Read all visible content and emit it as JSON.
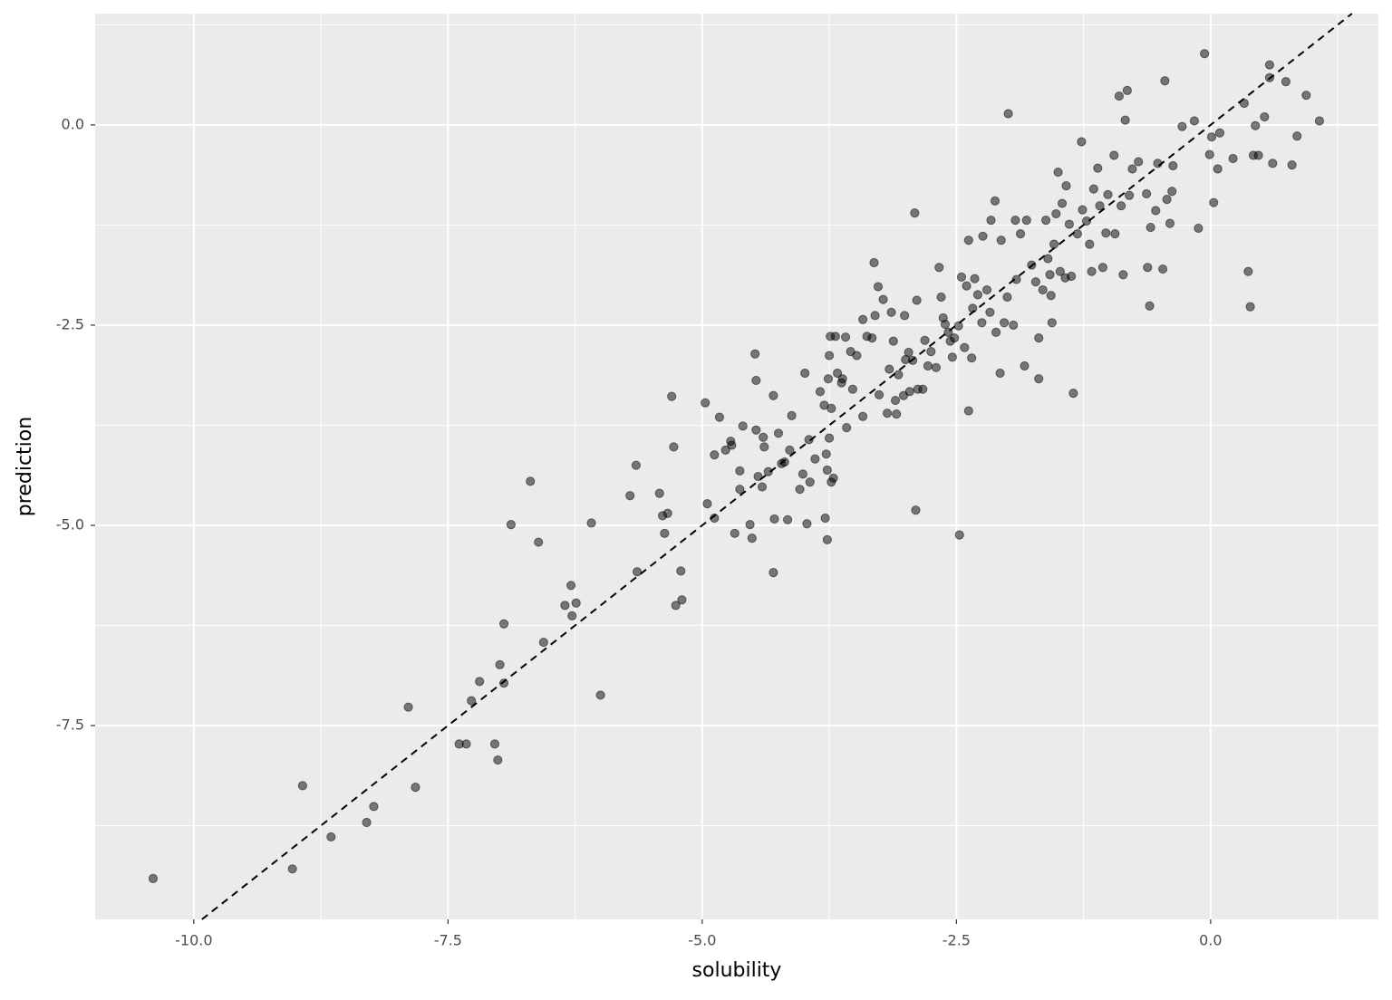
{
  "chart_data": {
    "type": "scatter",
    "x_label": "solubility",
    "y_label": "prediction",
    "color": "#000000",
    "opacity": 0.5,
    "grid": true,
    "reference_line": {
      "slope": 1,
      "intercept": 0
    },
    "xlim": [
      -10.97,
      1.65
    ],
    "ylim": [
      -9.92,
      1.39
    ],
    "xticks": [
      {
        "value": -10,
        "label": "-10.0"
      },
      -7.5,
      {
        "value": -5,
        "label": "-5.0"
      },
      -2.5,
      {
        "value": 0,
        "label": "0.0"
      }
    ],
    "yticks": [
      {
        "value": 0,
        "label": "0.0"
      },
      -2.5,
      {
        "value": -5,
        "label": "-5.0"
      },
      -7.5
    ],
    "x": [
      -10.4,
      -9.03,
      -8.93,
      -8.65,
      -8.3,
      -8.23,
      -7.89,
      -7.82,
      -7.39,
      -7.32,
      -7.27,
      -7.19,
      -7.04,
      -7.01,
      -6.99,
      -6.95,
      -6.95,
      -6.88,
      -6.69,
      -6.61,
      -6.56,
      -6.35,
      -6.29,
      -6.28,
      -6.24,
      -6.09,
      -6.0,
      -5.71,
      -5.65,
      -5.64,
      -5.42,
      -5.39,
      -5.37,
      -5.34,
      -5.3,
      -5.28,
      -5.26,
      -5.21,
      -5.2,
      -4.97,
      -4.95,
      -4.88,
      -4.88,
      -4.83,
      -4.77,
      -4.72,
      -4.71,
      -4.68,
      -4.63,
      -4.63,
      -4.6,
      -4.53,
      -4.51,
      -4.48,
      -4.47,
      -4.47,
      -4.45,
      -4.41,
      -4.4,
      -4.39,
      -4.35,
      -4.3,
      -4.3,
      -4.29,
      -4.25,
      -4.22,
      -4.19,
      -4.16,
      -4.14,
      -4.12,
      -4.04,
      -4.01,
      -3.99,
      -3.97,
      -3.95,
      -3.94,
      -3.89,
      -3.84,
      -3.8,
      -3.79,
      -3.78,
      -3.77,
      -3.77,
      -3.76,
      -3.75,
      -3.75,
      -3.74,
      -3.73,
      -3.73,
      -3.71,
      -3.69,
      -3.67,
      -3.63,
      -3.62,
      -3.59,
      -3.58,
      -3.54,
      -3.52,
      -3.48,
      -3.42,
      -3.42,
      -3.38,
      -3.33,
      -3.31,
      -3.3,
      -3.27,
      -3.26,
      -3.22,
      -3.18,
      -3.16,
      -3.14,
      -3.12,
      -3.1,
      -3.09,
      -3.07,
      -3.02,
      -3.01,
      -3.0,
      -2.97,
      -2.96,
      -2.93,
      -2.91,
      -2.9,
      -2.89,
      -2.88,
      -2.83,
      -2.81,
      -2.78,
      -2.75,
      -2.7,
      -2.67,
      -2.65,
      -2.63,
      -2.61,
      -2.58,
      -2.56,
      -2.54,
      -2.52,
      -2.48,
      -2.47,
      -2.45,
      -2.42,
      -2.4,
      -2.38,
      -2.38,
      -2.35,
      -2.34,
      -2.32,
      -2.29,
      -2.25,
      -2.24,
      -2.2,
      -2.17,
      -2.16,
      -2.12,
      -2.11,
      -2.07,
      -2.06,
      -2.03,
      -2.0,
      -1.99,
      -1.94,
      -1.92,
      -1.91,
      -1.87,
      -1.83,
      -1.81,
      -1.76,
      -1.72,
      -1.69,
      -1.69,
      -1.65,
      -1.62,
      -1.6,
      -1.58,
      -1.57,
      -1.56,
      -1.54,
      -1.52,
      -1.5,
      -1.48,
      -1.46,
      -1.43,
      -1.42,
      -1.39,
      -1.37,
      -1.35,
      -1.31,
      -1.27,
      -1.26,
      -1.22,
      -1.19,
      -1.17,
      -1.15,
      -1.11,
      -1.09,
      -1.06,
      -1.03,
      -1.01,
      -0.95,
      -0.94,
      -0.9,
      -0.88,
      -0.86,
      -0.84,
      -0.82,
      -0.8,
      -0.77,
      -0.71,
      -0.63,
      -0.62,
      -0.6,
      -0.59,
      -0.54,
      -0.52,
      -0.47,
      -0.45,
      -0.43,
      -0.4,
      -0.38,
      -0.37,
      -0.28,
      -0.16,
      -0.12,
      -0.06,
      -0.01,
      0.01,
      0.03,
      0.07,
      0.09,
      0.22,
      0.33,
      0.37,
      0.39,
      0.42,
      0.44,
      0.47,
      0.53,
      0.58,
      0.58,
      0.61,
      0.74,
      0.8,
      0.85,
      0.94,
      1.07
    ],
    "values": [
      -9.41,
      -9.29,
      -8.25,
      -8.89,
      -8.71,
      -8.51,
      -7.27,
      -8.27,
      -7.73,
      -7.73,
      -7.19,
      -6.95,
      -7.73,
      -7.93,
      -6.74,
      -6.97,
      -6.23,
      -4.99,
      -4.45,
      -5.21,
      -6.46,
      -6.0,
      -5.75,
      -6.13,
      -5.97,
      -4.97,
      -7.12,
      -4.63,
      -4.25,
      -5.58,
      -4.6,
      -4.88,
      -5.1,
      -4.85,
      -3.39,
      -4.02,
      -6.0,
      -5.57,
      -5.93,
      -3.47,
      -4.73,
      -4.91,
      -4.12,
      -3.65,
      -4.06,
      -3.95,
      -4.0,
      -5.1,
      -4.32,
      -4.55,
      -3.76,
      -4.99,
      -5.16,
      -2.86,
      -3.81,
      -3.19,
      -4.39,
      -4.52,
      -3.9,
      -4.02,
      -4.33,
      -5.59,
      -3.38,
      -4.92,
      -3.85,
      -4.23,
      -4.21,
      -4.93,
      -4.06,
      -3.63,
      -4.55,
      -4.36,
      -3.1,
      -4.98,
      -3.93,
      -4.46,
      -4.17,
      -3.33,
      -3.5,
      -4.91,
      -4.11,
      -5.18,
      -4.31,
      -3.17,
      -2.88,
      -3.91,
      -2.64,
      -3.54,
      -4.46,
      -4.41,
      -2.64,
      -3.1,
      -3.22,
      -3.17,
      -2.65,
      -3.78,
      -2.83,
      -3.3,
      -2.88,
      -2.43,
      -3.64,
      -2.64,
      -2.66,
      -1.72,
      -2.38,
      -2.02,
      -3.37,
      -2.18,
      -3.6,
      -3.05,
      -2.34,
      -2.7,
      -3.44,
      -3.61,
      -3.12,
      -3.38,
      -2.38,
      -2.93,
      -2.84,
      -3.33,
      -2.94,
      -1.1,
      -4.81,
      -2.19,
      -3.3,
      -3.3,
      -2.69,
      -3.01,
      -2.83,
      -3.03,
      -1.78,
      -2.15,
      -2.41,
      -2.49,
      -2.59,
      -2.7,
      -2.9,
      -2.66,
      -2.51,
      -5.12,
      -1.9,
      -2.78,
      -2.01,
      -1.44,
      -3.57,
      -2.91,
      -2.29,
      -1.92,
      -2.12,
      -2.47,
      -1.39,
      -2.06,
      -2.34,
      -1.19,
      -0.95,
      -2.59,
      -3.1,
      -1.44,
      -2.47,
      -2.15,
      0.14,
      -2.5,
      -1.19,
      -1.93,
      -1.36,
      -3.01,
      -1.19,
      -1.75,
      -1.96,
      -3.17,
      -2.66,
      -2.06,
      -1.19,
      -1.67,
      -1.87,
      -2.13,
      -2.47,
      -1.49,
      -1.11,
      -0.59,
      -1.83,
      -0.98,
      -1.91,
      -0.76,
      -1.24,
      -1.89,
      -3.35,
      -1.36,
      -0.21,
      -1.06,
      -1.2,
      -1.49,
      -1.83,
      -0.8,
      -0.54,
      -1.01,
      -1.78,
      -1.35,
      -0.87,
      -0.38,
      -1.36,
      0.36,
      -1.01,
      -1.87,
      0.06,
      0.43,
      -0.88,
      -0.55,
      -0.46,
      -0.86,
      -1.78,
      -2.26,
      -1.28,
      -1.07,
      -0.48,
      -1.8,
      0.55,
      -0.93,
      -1.23,
      -0.83,
      -0.51,
      -0.02,
      0.05,
      -1.29,
      0.89,
      -0.37,
      -0.15,
      -0.97,
      -0.55,
      -0.1,
      -0.42,
      0.27,
      -1.83,
      -2.27,
      -0.38,
      -0.01,
      -0.38,
      0.1,
      0.75,
      0.59,
      -0.48,
      0.54,
      -0.5,
      -0.14,
      0.37,
      0.05
    ]
  }
}
